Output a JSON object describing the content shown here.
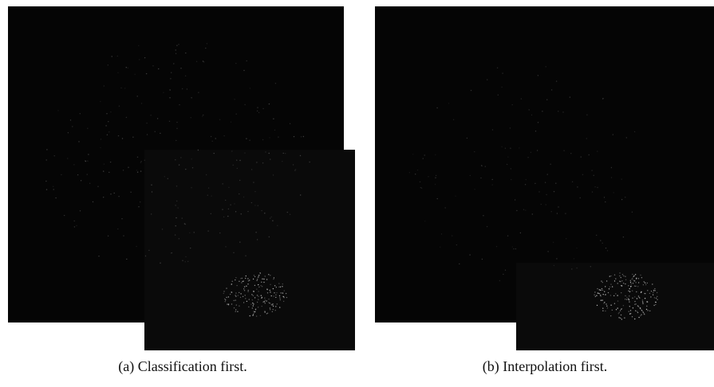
{
  "figures": [
    {
      "caption": "(a) Classification first."
    },
    {
      "caption": "(b) Interpolation first."
    }
  ]
}
